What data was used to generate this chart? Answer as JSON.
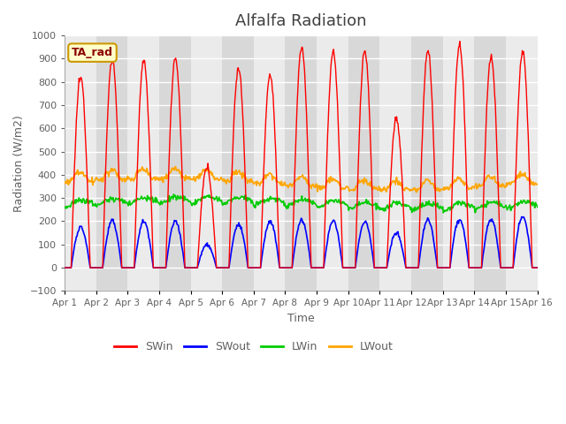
{
  "title": "Alfalfa Radiation",
  "xlabel": "Time",
  "ylabel": "Radiation (W/m2)",
  "ylim": [
    -100,
    1000
  ],
  "xlim": [
    0,
    15
  ],
  "x_tick_labels": [
    "Apr 1",
    "Apr 2",
    "Apr 3",
    "Apr 4",
    "Apr 5",
    "Apr 6",
    "Apr 7",
    "Apr 8",
    "Apr 9",
    "Apr 10",
    "Apr 11",
    "Apr 12",
    "Apr 13",
    "Apr 14",
    "Apr 15",
    "Apr 16"
  ],
  "legend_label": "TA_rad",
  "colors": {
    "SWin": "#ff0000",
    "SWout": "#0000ff",
    "LWin": "#00cc00",
    "LWout": "#ffa500"
  },
  "band_color_light": "#ebebeb",
  "band_color_dark": "#d8d8d8",
  "fig_background": "#ffffff",
  "title_fontsize": 13,
  "title_color": "#404040",
  "axis_label_color": "#606060",
  "tick_color": "#606060"
}
